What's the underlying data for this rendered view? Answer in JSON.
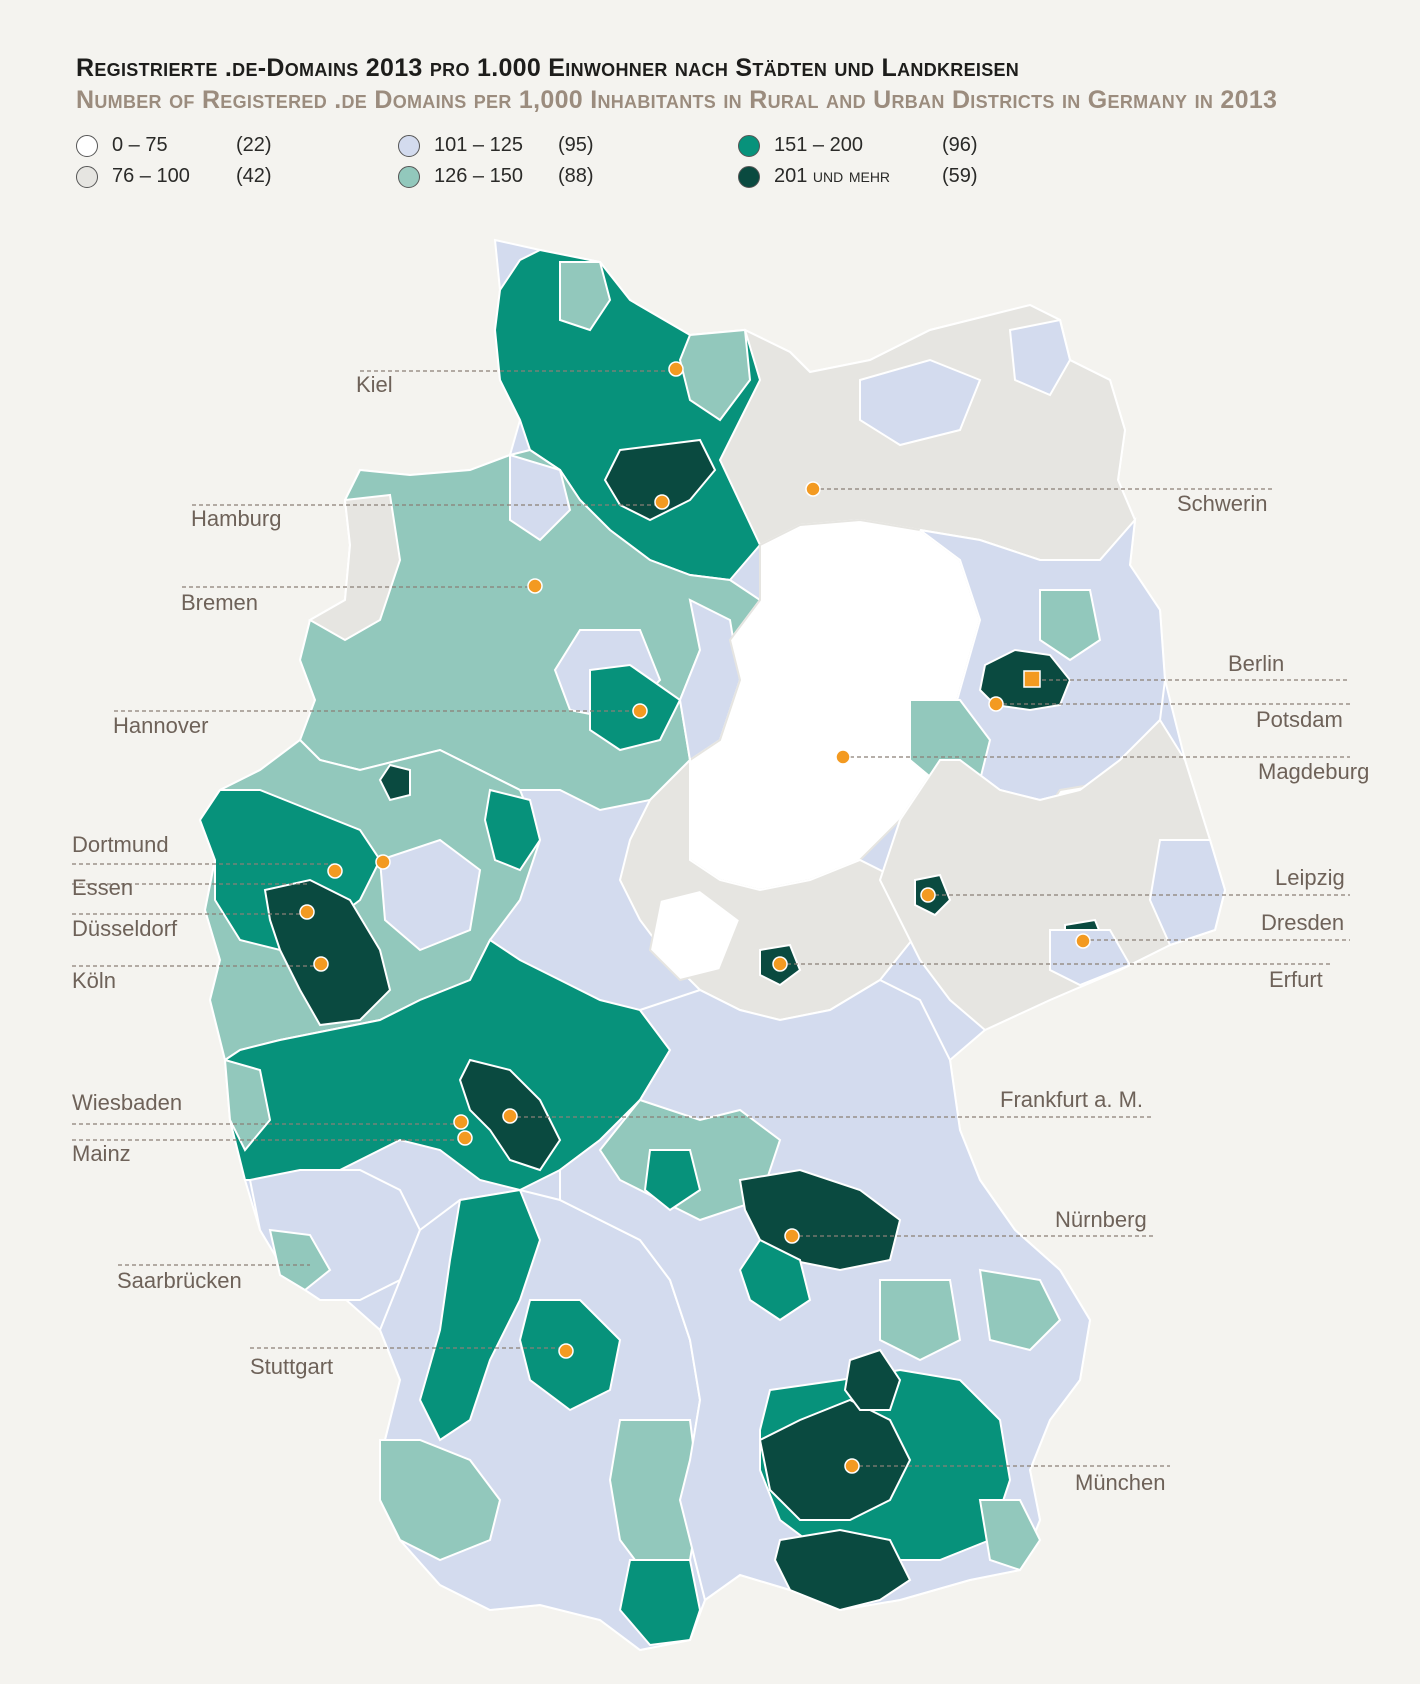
{
  "title": {
    "de": "Registrierte .de-Domains 2013 pro 1.000 Einwohner nach Städten und Landkreisen",
    "en": "Number of Registered .de Domains per 1,000 Inhabitants in Rural and Urban Districts in Germany in 2013"
  },
  "legend": [
    {
      "range": "0 – 75",
      "count": "(22)",
      "color": "#ffffff"
    },
    {
      "range": "76 – 100",
      "count": "(42)",
      "color": "#e6e5e1"
    },
    {
      "range": "101 – 125",
      "count": "(95)",
      "color": "#d3dbee"
    },
    {
      "range": "126 – 150",
      "count": "(88)",
      "color": "#92c8bc"
    },
    {
      "range": "151 – 200",
      "count": "(96)",
      "color": "#07927b"
    },
    {
      "range": "201 und mehr",
      "count": "(59)",
      "color": "#0a4a40"
    }
  ],
  "cities": {
    "kiel": "Kiel",
    "hamburg": "Hamburg",
    "bremen": "Bremen",
    "hannover": "Hannover",
    "dortmund": "Dortmund",
    "essen": "Essen",
    "duesseldorf": "Düsseldorf",
    "koeln": "Köln",
    "wiesbaden": "Wiesbaden",
    "mainz": "Mainz",
    "saarbruecken": "Saarbrücken",
    "stuttgart": "Stuttgart",
    "schwerin": "Schwerin",
    "berlin": "Berlin",
    "potsdam": "Potsdam",
    "magdeburg": "Magdeburg",
    "leipzig": "Leipzig",
    "dresden": "Dresden",
    "erfurt": "Erfurt",
    "frankfurt": "Frankfurt a. M.",
    "nuernberg": "Nürnberg",
    "muenchen": "München"
  },
  "colors": {
    "marker": "#f39a21",
    "leader_line": "#8a7f76",
    "border": "#ffffff"
  }
}
